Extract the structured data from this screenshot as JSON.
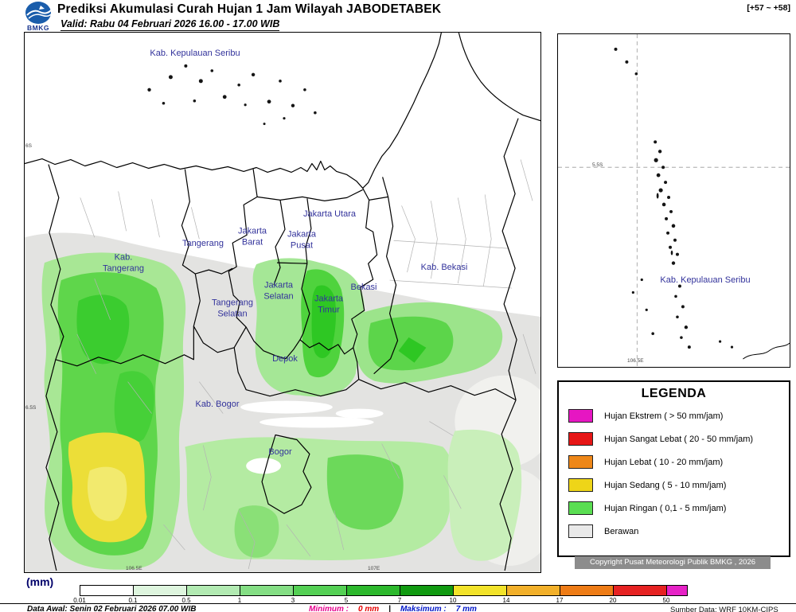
{
  "header": {
    "logo_text": "BMKG",
    "title": "Prediksi Akumulasi Curah Hujan 1 Jam Wilayah JABODETABEK",
    "offset": "[+57 ~ +58]",
    "valid": "Valid: Rabu 04 Februari 2026 16.00 - 17.00 WIB"
  },
  "map": {
    "labels": [
      "Kab. Kepulauan Seribu",
      "Kab.\nTangerang",
      "Tangerang",
      "Jakarta\nBarat",
      "Jakarta Utara",
      "Jakarta\nPusat",
      "Jakarta\nSelatan",
      "Jakarta\nTimur",
      "Tangerang\nSelatan",
      "Bekasi",
      "Kab. Bekasi",
      "Depok",
      "Kab. Bogor",
      "Bogor"
    ],
    "axis_left": [
      "6S",
      "6.5S"
    ],
    "axis_bottom": [
      "106.5E",
      "107E"
    ]
  },
  "inset": {
    "label": "Kab. Kepulauan Seribu",
    "axis_left": "5.5S",
    "axis_bottom": "106.5E"
  },
  "legend": {
    "title": "LEGENDA",
    "items": [
      {
        "label": "Hujan Ekstrem ( > 50 mm/jam)",
        "color": "#e616c2"
      },
      {
        "label": "Hujan Sangat Lebat ( 20 - 50 mm/jam)",
        "color": "#e61616"
      },
      {
        "label": "Hujan Lebat ( 10 - 20 mm/jam)",
        "color": "#ee8718"
      },
      {
        "label": "Hujan Sedang ( 5 - 10 mm/jam)",
        "color": "#eed518"
      },
      {
        "label": "Hujan Ringan ( 0,1 - 5 mm/jam)",
        "color": "#5ade52"
      },
      {
        "label": "Berawan",
        "color": "#e9e9e9"
      }
    ]
  },
  "copyright": "Copyright Pusat Meteorologi Publik BMKG , 2026",
  "colorbar": {
    "unit": "(mm)",
    "ticks": [
      "0.01",
      "0.1",
      "0.5",
      "1",
      "3",
      "5",
      "7",
      "10",
      "14",
      "17",
      "20",
      "50"
    ],
    "colors": [
      "#ffffff",
      "#def5de",
      "#b2eab2",
      "#84de84",
      "#54d054",
      "#2cb82c",
      "#109a10",
      "#f2e32a",
      "#f2b02a",
      "#ee7c16",
      "#e62222",
      "#e622c6"
    ]
  },
  "footer": {
    "data_awal": "Data Awal: Senin 02 Februari 2026 07.00 WIB",
    "minimum_label": "Minimum :",
    "minimum_value": "0 mm",
    "separator": "|",
    "maksimum_label": "Maksimum :",
    "maksimum_value": "7 mm",
    "minimum_label_color": "#e6008e",
    "minimum_value_color": "#e60000",
    "maksimum_label_color": "#0016c8",
    "maksimum_value_color": "#0016c8",
    "source": "Sumber Data: WRF 10KM-CIPS BMKG"
  }
}
